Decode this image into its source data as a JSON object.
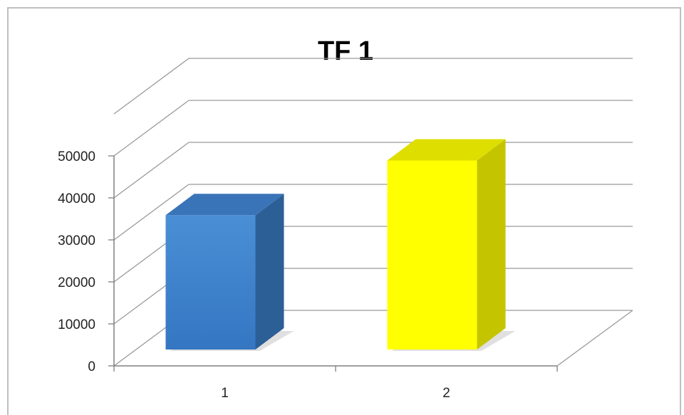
{
  "chart_data": {
    "type": "bar",
    "style": "3d-column",
    "title": "TF 1",
    "categories": [
      "1",
      "2"
    ],
    "values": [
      32000,
      45000
    ],
    "ylim": [
      0,
      50000
    ],
    "yticks": [
      "0",
      "10000",
      "20000",
      "30000",
      "40000",
      "50000"
    ],
    "grid": true,
    "legend": "none",
    "colors": {
      "bar_1_front": "#4a8fd6",
      "bar_1_side": "#2d5f97",
      "bar_1_top": "#3a74b8",
      "bar_2_front": "#ffff00",
      "bar_2_side": "#c4c400",
      "bar_2_top": "#dede00",
      "grid": "#9a9a9a"
    }
  }
}
